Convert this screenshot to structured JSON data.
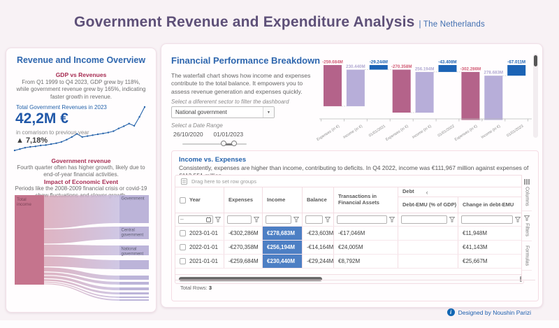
{
  "header": {
    "title": "Government Revenue and Expenditure Analysis",
    "subtitle": "| The Netherlands"
  },
  "left_panel": {
    "title": "Revenue and Income Overview",
    "gdp_heading": "GDP vs Revenues",
    "gdp_body": "From Q1 1999 to Q4 2023, GDP grew by 118%, while government revenue grew by 165%, indicating faster growth in revenue.",
    "kpi_label": "Total Government Revenues in 2023",
    "kpi_value": "42,2M €",
    "kpi_compare": "in comarison to previous year",
    "kpi_delta": "▲ 7,18%",
    "gov_heading": "Government revenue",
    "gov_body": "Fourth quarter often has higher growth, likely due to end-of-year financial activities.",
    "impact_heading": "Impact of Economic Event",
    "impact_body": "Periods like the 2008-2009 financial crisis or covid-19 show fluctuations and slower growth."
  },
  "right_panel": {
    "title": "Financial Performance Breakdown",
    "description": "The waterfall chart shows how income and expenses contribute to the total balance. It empowers you to assess revenue generation and expenses quickly.",
    "sector_label": "Select a difererent sector to filter the dashboard",
    "sector_value": "National government",
    "date_label": "Select a Date Range",
    "date_start": "26/10/2020",
    "date_end": "01/01/2023"
  },
  "table": {
    "title": "Income vs. Expenses",
    "description": "Consistently, expenses are higher than income, contributing to deficits. In Q4 2022, income was €111,967 million against expenses of €113,551 million.",
    "drag_hint": "Drag here to set row groups",
    "columns": [
      "Year",
      "Expenses",
      "Income",
      "Balance",
      "Transactions in Financial Assets"
    ],
    "debt_group_label": "Debt",
    "debt_group_collapse": "‹",
    "debt_columns": [
      "Debt-EMU (% of GDP)",
      "Change in debt-EMU"
    ],
    "date_filter_placeholder": "--",
    "rows": [
      [
        "2023-01-01",
        "-€302,286M",
        "€278,683M",
        "-€23,603M",
        "-€17,046M",
        "",
        "€11,948M"
      ],
      [
        "2022-01-01",
        "-€270,358M",
        "€256,194M",
        "-€14,164M",
        "€24,005M",
        "",
        "€41,143M"
      ],
      [
        "2021-01-01",
        "-€259,684M",
        "€230,440M",
        "-€29,244M",
        "€8,792M",
        "",
        "€25,667M"
      ]
    ],
    "total_rows_label": "Total Rows:",
    "total_rows_value": "3",
    "side_tabs": [
      "Columns",
      "Filters",
      "Formulas"
    ]
  },
  "footer": {
    "credit": "Designed by Noushin Parizi"
  },
  "icons": {
    "dropdown_arrow": "▼"
  },
  "chart_data": [
    {
      "id": "waterfall",
      "type": "bar",
      "subtype": "waterfall",
      "unit": "M €",
      "bars": [
        {
          "label": "-259.684M",
          "kind": "expenses",
          "value": -259.684
        },
        {
          "label": "230.440M",
          "kind": "income",
          "value": 230.44
        },
        {
          "label": "-29.244M",
          "kind": "balance",
          "value": -29.244
        },
        {
          "label": "-270.358M",
          "kind": "expenses",
          "value": -270.358
        },
        {
          "label": "256.194M",
          "kind": "income",
          "value": 256.194
        },
        {
          "label": "-43.408M",
          "kind": "balance",
          "value": -43.408
        },
        {
          "label": "-302.286M",
          "kind": "expenses",
          "value": -302.286
        },
        {
          "label": "278.683M",
          "kind": "income",
          "value": 278.683
        },
        {
          "label": "-67.011M",
          "kind": "balance",
          "value": -67.011
        }
      ],
      "x_ticks": [
        "Expenses (in €)",
        "Income (in €)",
        "01/01/2021",
        "Expenses (in €)",
        "Income (in €)",
        "01/01/2022",
        "Expenses (in €)",
        "Income (in €)",
        "01/01/2023"
      ],
      "colors": {
        "expenses": "#b4638a",
        "income": "#b7aed9",
        "balance": "#1b63b5",
        "expenses_label": "#d15a74",
        "income_label": "#b1a9d2",
        "balance_label": "#1b63b5"
      }
    },
    {
      "id": "gdp_line",
      "type": "line",
      "color": "#2563ab",
      "points_norm": [
        0.03,
        0.06,
        0.09,
        0.11,
        0.12,
        0.14,
        0.15,
        0.17,
        0.19,
        0.22,
        0.27,
        0.33,
        0.4,
        0.33,
        0.35,
        0.37,
        0.39,
        0.41,
        0.43,
        0.46,
        0.52,
        0.57,
        0.63,
        0.58,
        0.78,
        1.0
      ]
    },
    {
      "id": "sankey",
      "type": "sankey",
      "source": {
        "label": "Total income"
      },
      "targets": [
        {
          "label": "Government",
          "h": 40
        },
        {
          "label": "Central government",
          "h": 18
        },
        {
          "label": "National government",
          "h": 14
        },
        {
          "label": "",
          "h": 13
        },
        {
          "label": "",
          "h": 6
        },
        {
          "label": "",
          "h": 4
        },
        {
          "label": "",
          "h": 4
        },
        {
          "label": "",
          "h": 3
        },
        {
          "label": "",
          "h": 2
        },
        {
          "label": "",
          "h": 2
        }
      ],
      "colors": {
        "source": "#c5748d",
        "target": "#bcb4d9",
        "flow_from": "#d6a2b4",
        "flow_to": "#cac2e2"
      }
    }
  ]
}
